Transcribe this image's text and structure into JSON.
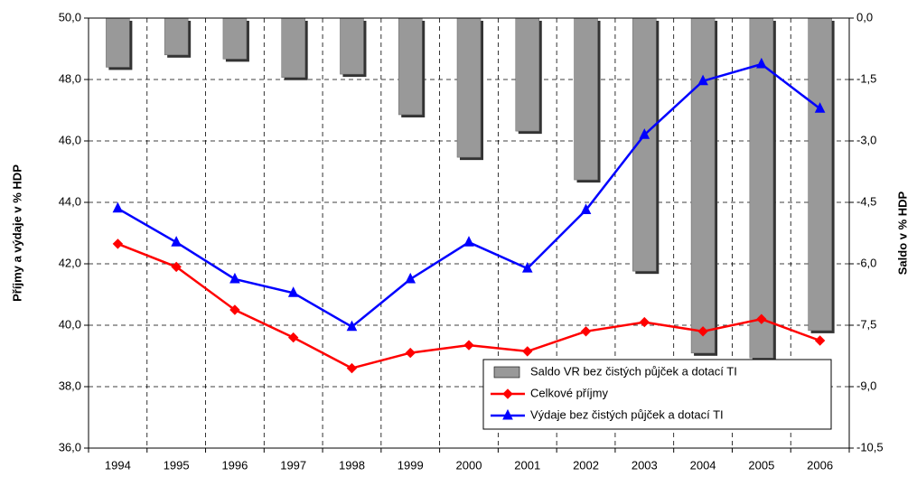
{
  "chart_data": {
    "type": "bar-line",
    "y_label": "Příjmy a výdaje v % HDP",
    "y2_label": "Saldo v % HDP",
    "categories": [
      "1994",
      "1995",
      "1996",
      "1997",
      "1998",
      "1999",
      "2000",
      "2001",
      "2002",
      "2003",
      "2004",
      "2005",
      "2006"
    ],
    "series": [
      {
        "name": "Saldo VR bez čistých půjček a dotací TI",
        "type": "bar",
        "axis": "y2",
        "color": "#999999",
        "values": [
          -1.2,
          -0.9,
          -1.0,
          -1.45,
          -1.37,
          -2.36,
          -3.4,
          -2.76,
          -3.95,
          -6.18,
          -8.18,
          -8.3,
          -7.63
        ]
      },
      {
        "name": "Celkové příjmy",
        "type": "line",
        "marker": "diamond",
        "color": "#ff0000",
        "values": [
          42.65,
          41.9,
          40.5,
          39.6,
          38.6,
          39.1,
          39.35,
          39.15,
          39.8,
          40.1,
          39.8,
          40.2,
          39.5
        ]
      },
      {
        "name": "Výdaje bez čistých půjček a dotací TI",
        "type": "line",
        "marker": "triangle",
        "color": "#0000ff",
        "values": [
          43.8,
          42.7,
          41.5,
          41.05,
          39.95,
          41.5,
          42.7,
          41.85,
          43.75,
          46.2,
          47.95,
          48.5,
          47.05
        ]
      }
    ],
    "ylim": [
      36,
      50
    ],
    "yticks": [
      {
        "value": 36,
        "label": "36,0"
      },
      {
        "value": 38,
        "label": "38,0"
      },
      {
        "value": 40,
        "label": "40,0"
      },
      {
        "value": 42,
        "label": "42,0"
      },
      {
        "value": 44,
        "label": "44,0"
      },
      {
        "value": 46,
        "label": "46,0"
      },
      {
        "value": 48,
        "label": "48,0"
      },
      {
        "value": 50,
        "label": "50,0"
      }
    ],
    "y2lim": [
      -10.5,
      0
    ],
    "y2ticks": [
      {
        "value": 0,
        "label": "0,0"
      },
      {
        "value": -1.5,
        "label": "-1,5"
      },
      {
        "value": -3,
        "label": "-3,0"
      },
      {
        "value": -4.5,
        "label": "-4,5"
      },
      {
        "value": -6,
        "label": "-6,0"
      },
      {
        "value": -7.5,
        "label": "-7,5"
      },
      {
        "value": -9,
        "label": "-9,0"
      },
      {
        "value": -10.5,
        "label": "-10,5"
      }
    ],
    "grid": true,
    "legend": "lower right"
  }
}
